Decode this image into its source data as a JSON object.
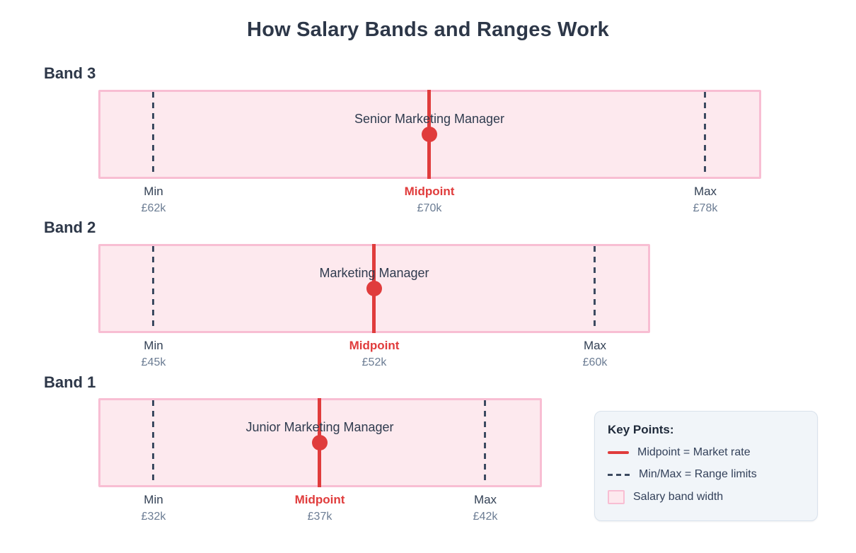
{
  "title": "How Salary Bands and Ranges Work",
  "bands": [
    {
      "label": "Band 3",
      "role": "Senior Marketing Manager",
      "min_label": "Min",
      "min_value": "£62k",
      "mid_label": "Midpoint",
      "mid_value": "£70k",
      "max_label": "Max",
      "max_value": "£78k"
    },
    {
      "label": "Band 2",
      "role": "Marketing Manager",
      "min_label": "Min",
      "min_value": "£45k",
      "mid_label": "Midpoint",
      "mid_value": "£52k",
      "max_label": "Max",
      "max_value": "£60k"
    },
    {
      "label": "Band 1",
      "role": "Junior Marketing Manager",
      "min_label": "Min",
      "min_value": "£32k",
      "mid_label": "Midpoint",
      "mid_value": "£37k",
      "max_label": "Max",
      "max_value": "£42k"
    }
  ],
  "legend": {
    "title": "Key Points:",
    "items": [
      {
        "swatch": "midpoint-line",
        "label": "Midpoint = Market rate"
      },
      {
        "swatch": "minmax-dash",
        "label": "Min/Max = Range limits"
      },
      {
        "swatch": "band-width",
        "label": "Salary band width"
      }
    ]
  },
  "colors": {
    "accent_red": "#e03c3c",
    "band_fill": "#fde9ee",
    "band_border": "#f8bed3",
    "dash_line": "#3c4a60",
    "heading_text": "#2d3748",
    "tick_text": "#334155",
    "value_text": "#6b7c93",
    "legend_bg": "#f1f5f9",
    "legend_border": "#d9e2ec"
  },
  "chart_data": {
    "type": "bar",
    "variant": "salary-range-bands",
    "title": "How Salary Bands and Ranges Work",
    "categories": [
      "Band 3",
      "Band 2",
      "Band 1"
    ],
    "roles": [
      "Senior Marketing Manager",
      "Marketing Manager",
      "Junior Marketing Manager"
    ],
    "series": [
      {
        "name": "Min",
        "values": [
          62,
          45,
          32
        ]
      },
      {
        "name": "Midpoint",
        "values": [
          70,
          52,
          37
        ]
      },
      {
        "name": "Max",
        "values": [
          78,
          60,
          42
        ]
      }
    ],
    "units": "£k (GBP thousands)",
    "legend_position": "bottom-right",
    "grid": false
  }
}
